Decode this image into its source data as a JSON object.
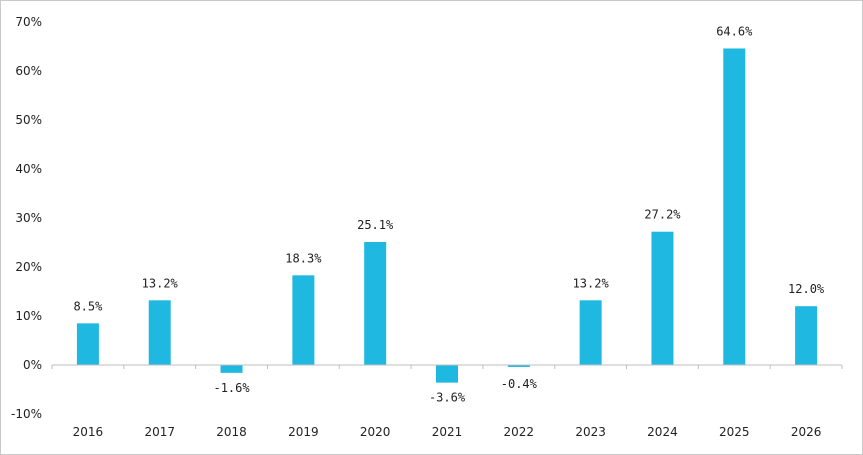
{
  "chart_data": {
    "type": "bar",
    "title": "",
    "xlabel": "",
    "ylabel": "",
    "categories": [
      "2016",
      "2017",
      "2018",
      "2019",
      "2020",
      "2021",
      "2022",
      "2023",
      "2024",
      "2025",
      "2026"
    ],
    "values": [
      8.5,
      13.2,
      -1.6,
      18.3,
      25.1,
      -3.6,
      -0.4,
      13.2,
      27.2,
      64.6,
      12.0
    ],
    "data_labels": [
      "8.5%",
      "13.2%",
      "-1.6%",
      "18.3%",
      "25.1%",
      "-3.6%",
      "-0.4%",
      "13.2%",
      "27.2%",
      "64.6%",
      "12.0%"
    ],
    "ylim": [
      -10,
      70
    ],
    "yticks": [
      -10,
      0,
      10,
      20,
      30,
      40,
      50,
      60,
      70
    ],
    "ytick_labels": [
      "-10%",
      "0%",
      "10%",
      "20%",
      "30%",
      "40%",
      "50%",
      "60%",
      "70%"
    ],
    "grid": false,
    "legend": "none",
    "bar_color": "#1fb8e0"
  }
}
